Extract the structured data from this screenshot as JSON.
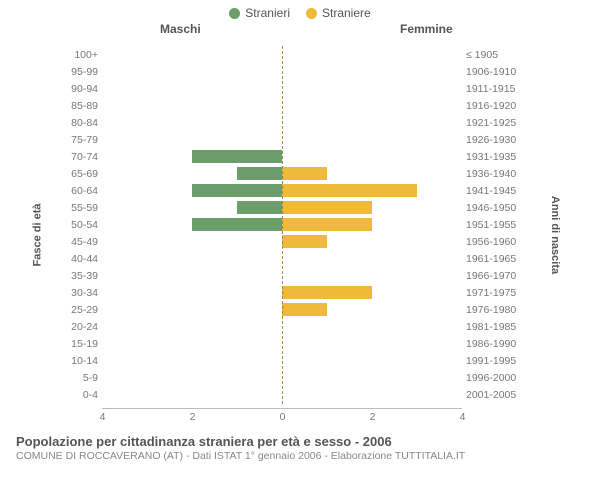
{
  "legend": {
    "male": {
      "label": "Stranieri",
      "color": "#6b9e6b"
    },
    "female": {
      "label": "Straniere",
      "color": "#f0b93a"
    }
  },
  "headers": {
    "left": "Maschi",
    "right": "Femmine"
  },
  "axis_titles": {
    "left": "Fasce di età",
    "right": "Anni di nascita"
  },
  "chart": {
    "type": "population-pyramid",
    "x_max": 4,
    "x_ticks": [
      4,
      2,
      0,
      2,
      4
    ],
    "bar_colors": {
      "male": "#6b9e6b",
      "female": "#f0b93a"
    },
    "background": "#ffffff",
    "zero_line_color": "#9a8a3a",
    "rows": [
      {
        "age": "100+",
        "birth": "≤ 1905",
        "m": 0,
        "f": 0
      },
      {
        "age": "95-99",
        "birth": "1906-1910",
        "m": 0,
        "f": 0
      },
      {
        "age": "90-94",
        "birth": "1911-1915",
        "m": 0,
        "f": 0
      },
      {
        "age": "85-89",
        "birth": "1916-1920",
        "m": 0,
        "f": 0
      },
      {
        "age": "80-84",
        "birth": "1921-1925",
        "m": 0,
        "f": 0
      },
      {
        "age": "75-79",
        "birth": "1926-1930",
        "m": 0,
        "f": 0
      },
      {
        "age": "70-74",
        "birth": "1931-1935",
        "m": 2,
        "f": 0
      },
      {
        "age": "65-69",
        "birth": "1936-1940",
        "m": 1,
        "f": 1
      },
      {
        "age": "60-64",
        "birth": "1941-1945",
        "m": 2,
        "f": 3
      },
      {
        "age": "55-59",
        "birth": "1946-1950",
        "m": 1,
        "f": 2
      },
      {
        "age": "50-54",
        "birth": "1951-1955",
        "m": 2,
        "f": 2
      },
      {
        "age": "45-49",
        "birth": "1956-1960",
        "m": 0,
        "f": 1
      },
      {
        "age": "40-44",
        "birth": "1961-1965",
        "m": 0,
        "f": 0
      },
      {
        "age": "35-39",
        "birth": "1966-1970",
        "m": 0,
        "f": 0
      },
      {
        "age": "30-34",
        "birth": "1971-1975",
        "m": 0,
        "f": 2
      },
      {
        "age": "25-29",
        "birth": "1976-1980",
        "m": 0,
        "f": 1
      },
      {
        "age": "20-24",
        "birth": "1981-1985",
        "m": 0,
        "f": 0
      },
      {
        "age": "15-19",
        "birth": "1986-1990",
        "m": 0,
        "f": 0
      },
      {
        "age": "10-14",
        "birth": "1991-1995",
        "m": 0,
        "f": 0
      },
      {
        "age": "5-9",
        "birth": "1996-2000",
        "m": 0,
        "f": 0
      },
      {
        "age": "0-4",
        "birth": "2001-2005",
        "m": 0,
        "f": 0
      }
    ]
  },
  "footer": {
    "title": "Popolazione per cittadinanza straniera per età e sesso - 2006",
    "subtitle": "COMUNE DI ROCCAVERANO (AT) - Dati ISTAT 1° gennaio 2006 - Elaborazione TUTTITALIA.IT"
  }
}
